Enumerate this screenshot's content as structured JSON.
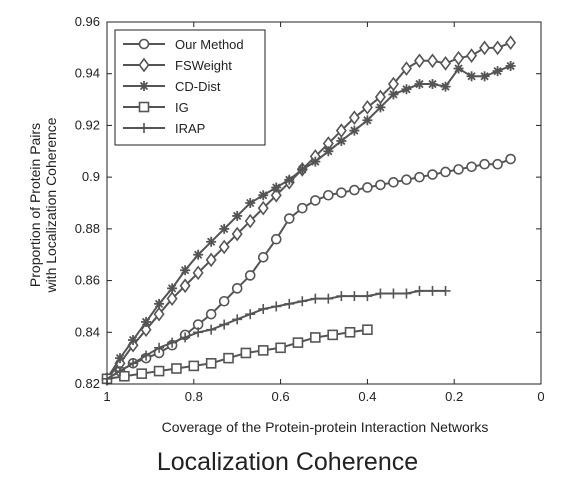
{
  "caption": "Localization Coherence",
  "colors": {
    "series": "#555555",
    "axis": "#222222"
  },
  "chart_data": {
    "type": "line",
    "title": "",
    "xlabel": "Coverage of the Protein-protein Interaction Networks",
    "ylabel_lines": [
      "Proportion of Protein Pairs",
      "with Localization Coherence"
    ],
    "xlim": [
      1,
      0
    ],
    "ylim": [
      0.82,
      0.96
    ],
    "x_ticks": [
      1,
      0.8,
      0.6,
      0.4,
      0.2,
      0
    ],
    "x_tick_labels": [
      "1",
      "0.8",
      "0.6",
      "0.4",
      "0.2",
      "0"
    ],
    "y_ticks": [
      0.82,
      0.84,
      0.86,
      0.88,
      0.9,
      0.92,
      0.94,
      0.96
    ],
    "y_tick_labels": [
      "0.82",
      "0.84",
      "0.86",
      "0.88",
      "0.9",
      "0.92",
      "0.94",
      "0.96"
    ],
    "grid": false,
    "legend_position": "top-left",
    "series": [
      {
        "name": "Our Method",
        "marker": "circle",
        "x": [
          1.0,
          0.97,
          0.94,
          0.91,
          0.88,
          0.85,
          0.82,
          0.79,
          0.76,
          0.73,
          0.7,
          0.67,
          0.64,
          0.61,
          0.58,
          0.55,
          0.52,
          0.49,
          0.46,
          0.43,
          0.4,
          0.37,
          0.34,
          0.31,
          0.28,
          0.25,
          0.22,
          0.19,
          0.16,
          0.13,
          0.1,
          0.07
        ],
        "y": [
          0.822,
          0.825,
          0.828,
          0.83,
          0.832,
          0.835,
          0.839,
          0.843,
          0.847,
          0.852,
          0.857,
          0.862,
          0.869,
          0.876,
          0.884,
          0.888,
          0.891,
          0.893,
          0.894,
          0.895,
          0.896,
          0.897,
          0.898,
          0.899,
          0.9,
          0.901,
          0.902,
          0.903,
          0.904,
          0.905,
          0.905,
          0.907
        ]
      },
      {
        "name": "FSWeight",
        "marker": "diamond",
        "x": [
          1.0,
          0.97,
          0.94,
          0.91,
          0.88,
          0.85,
          0.82,
          0.79,
          0.76,
          0.73,
          0.7,
          0.67,
          0.64,
          0.61,
          0.58,
          0.55,
          0.52,
          0.49,
          0.46,
          0.43,
          0.4,
          0.37,
          0.34,
          0.31,
          0.28,
          0.25,
          0.22,
          0.19,
          0.16,
          0.13,
          0.1,
          0.07
        ],
        "y": [
          0.822,
          0.828,
          0.835,
          0.841,
          0.847,
          0.853,
          0.858,
          0.863,
          0.868,
          0.873,
          0.878,
          0.883,
          0.888,
          0.893,
          0.898,
          0.903,
          0.908,
          0.913,
          0.918,
          0.923,
          0.927,
          0.931,
          0.936,
          0.942,
          0.945,
          0.945,
          0.944,
          0.946,
          0.947,
          0.95,
          0.95,
          0.952
        ]
      },
      {
        "name": "CD-Dist",
        "marker": "star",
        "x": [
          1.0,
          0.97,
          0.94,
          0.91,
          0.88,
          0.85,
          0.82,
          0.79,
          0.76,
          0.73,
          0.7,
          0.67,
          0.64,
          0.61,
          0.58,
          0.55,
          0.52,
          0.49,
          0.46,
          0.43,
          0.4,
          0.37,
          0.34,
          0.31,
          0.28,
          0.25,
          0.22,
          0.19,
          0.16,
          0.13,
          0.1,
          0.07
        ],
        "y": [
          0.822,
          0.83,
          0.837,
          0.844,
          0.851,
          0.857,
          0.864,
          0.87,
          0.875,
          0.88,
          0.885,
          0.89,
          0.893,
          0.896,
          0.899,
          0.903,
          0.906,
          0.91,
          0.914,
          0.918,
          0.922,
          0.927,
          0.932,
          0.934,
          0.936,
          0.936,
          0.935,
          0.942,
          0.939,
          0.939,
          0.941,
          0.943
        ]
      },
      {
        "name": "IG",
        "marker": "square",
        "x": [
          1.0,
          0.96,
          0.92,
          0.88,
          0.84,
          0.8,
          0.76,
          0.72,
          0.68,
          0.64,
          0.6,
          0.56,
          0.52,
          0.48,
          0.44,
          0.4
        ],
        "y": [
          0.822,
          0.823,
          0.824,
          0.825,
          0.826,
          0.827,
          0.828,
          0.83,
          0.832,
          0.833,
          0.834,
          0.836,
          0.838,
          0.839,
          0.84,
          0.841
        ]
      },
      {
        "name": "IRAP",
        "marker": "plus",
        "x": [
          1.0,
          0.97,
          0.94,
          0.91,
          0.88,
          0.85,
          0.82,
          0.79,
          0.76,
          0.73,
          0.7,
          0.67,
          0.64,
          0.61,
          0.58,
          0.55,
          0.52,
          0.49,
          0.46,
          0.43,
          0.4,
          0.37,
          0.34,
          0.31,
          0.28,
          0.25,
          0.22
        ],
        "y": [
          0.822,
          0.825,
          0.828,
          0.831,
          0.834,
          0.836,
          0.838,
          0.84,
          0.841,
          0.843,
          0.845,
          0.847,
          0.849,
          0.85,
          0.851,
          0.852,
          0.853,
          0.853,
          0.854,
          0.854,
          0.854,
          0.855,
          0.855,
          0.855,
          0.856,
          0.856,
          0.856
        ]
      }
    ]
  }
}
